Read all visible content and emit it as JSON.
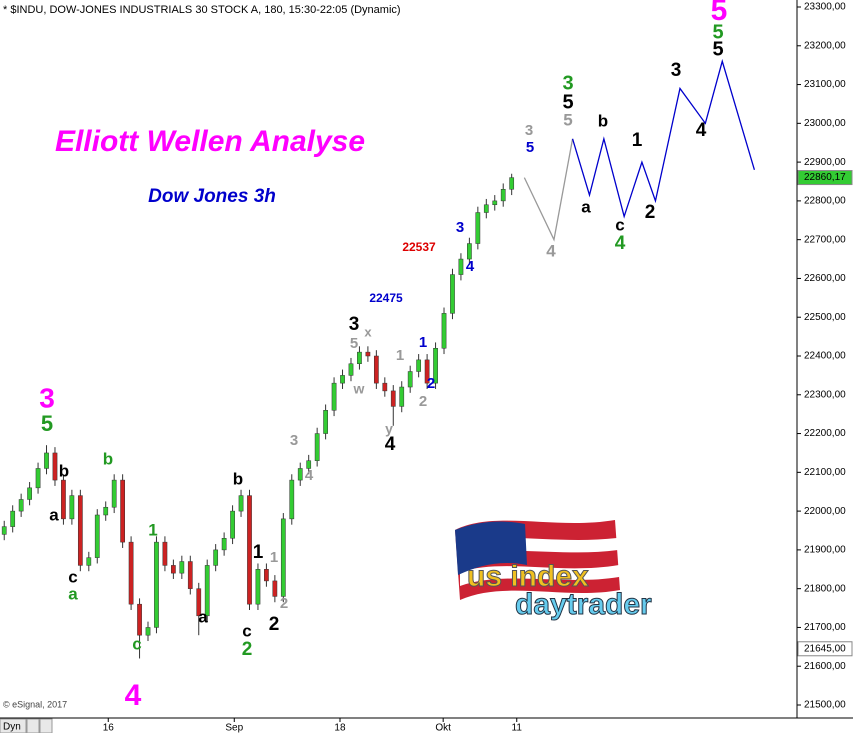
{
  "chart_data": {
    "type": "candlestick",
    "header": "* $INDU, DOW-JONES INDUSTRIALS 30 STOCK A, 180, 15:30-22:05 (Dynamic)",
    "title": "Elliott Wellen Analyse",
    "subtitle": "Dow Jones 3h",
    "source": "© eSignal, 2017",
    "corner_label": "Dyn",
    "logo": [
      "us index",
      "daytrader"
    ],
    "up_color": "#33cc33",
    "down_color": "#cc2222",
    "x": [
      0,
      1,
      2,
      3,
      4,
      5,
      6,
      7,
      8,
      9,
      10,
      11,
      12,
      13,
      14,
      15,
      16,
      17,
      18,
      19,
      20,
      21,
      22,
      23,
      24,
      25,
      26,
      27,
      28,
      29,
      30,
      31,
      32,
      33,
      34,
      35,
      36,
      37,
      38,
      39,
      40,
      41,
      42,
      43,
      44,
      45,
      46,
      47,
      48,
      49,
      50,
      51,
      52,
      53,
      54,
      55,
      56,
      57,
      58,
      59,
      60
    ],
    "open": [
      21940,
      21960,
      22000,
      22030,
      22060,
      22110,
      22150,
      22080,
      21980,
      22040,
      21860,
      21880,
      21990,
      22010,
      22080,
      21920,
      21760,
      21680,
      21700,
      21920,
      21860,
      21840,
      21870,
      21800,
      21730,
      21860,
      21900,
      21930,
      22000,
      22040,
      21760,
      21850,
      21820,
      21780,
      21980,
      22080,
      22110,
      22130,
      22200,
      22260,
      22330,
      22350,
      22380,
      22410,
      22400,
      22330,
      22310,
      22270,
      22320,
      22360,
      22390,
      22330,
      22420,
      22510,
      22610,
      22650,
      22690,
      22770,
      22790,
      22800,
      22830
    ],
    "high": [
      21975,
      22015,
      22045,
      22075,
      22125,
      22170,
      22165,
      22095,
      22055,
      22055,
      21895,
      22005,
      22025,
      22095,
      22095,
      21935,
      21775,
      21715,
      21935,
      21935,
      21875,
      21885,
      21885,
      21815,
      21875,
      21915,
      21945,
      22015,
      22055,
      22055,
      21865,
      21865,
      21835,
      21995,
      22095,
      22125,
      22145,
      22215,
      22275,
      22345,
      22365,
      22395,
      22425,
      22425,
      22415,
      22345,
      22325,
      22335,
      22375,
      22405,
      22405,
      22435,
      22525,
      22625,
      22665,
      22705,
      22785,
      22805,
      22815,
      22845,
      22870
    ],
    "low": [
      21925,
      21945,
      21985,
      22015,
      22045,
      22095,
      22065,
      21965,
      21965,
      21845,
      21845,
      21865,
      21975,
      21995,
      21905,
      21745,
      21620,
      21665,
      21685,
      21845,
      21825,
      21825,
      21785,
      21680,
      21715,
      21845,
      21885,
      21915,
      21985,
      21745,
      21745,
      21805,
      21765,
      21765,
      21965,
      22065,
      22095,
      22115,
      22185,
      22245,
      22315,
      22335,
      22365,
      22385,
      22315,
      22295,
      22220,
      22255,
      22305,
      22345,
      22315,
      22315,
      22405,
      22495,
      22595,
      22635,
      22675,
      22755,
      22775,
      22785,
      22815
    ],
    "close": [
      21960,
      22000,
      22030,
      22060,
      22110,
      22150,
      22080,
      21980,
      22040,
      21860,
      21880,
      21990,
      22010,
      22080,
      21920,
      21760,
      21680,
      21700,
      21920,
      21860,
      21840,
      21870,
      21800,
      21730,
      21860,
      21900,
      21930,
      22000,
      22040,
      21760,
      21850,
      21820,
      21780,
      21980,
      22080,
      22110,
      22130,
      22200,
      22260,
      22330,
      22350,
      22380,
      22410,
      22400,
      22330,
      22310,
      22270,
      22320,
      22360,
      22390,
      22330,
      22420,
      22510,
      22610,
      22650,
      22690,
      22770,
      22790,
      22800,
      22830,
      22860
    ],
    "projection": [
      {
        "color": "#999999",
        "x": [
          61.5,
          65,
          67.2
        ],
        "values": [
          22860,
          22700,
          22960
        ]
      },
      {
        "color": "#0000cc",
        "x": [
          67.2,
          69.2,
          70.9,
          73.3,
          75.4,
          77,
          79.9,
          82.9,
          84.9,
          88.7
        ],
        "values": [
          22960,
          22815,
          22960,
          22760,
          22900,
          22800,
          23090,
          23000,
          23160,
          22880
        ]
      }
    ],
    "xlim": [
      -0.5,
      93.5
    ],
    "xticks": [
      {
        "value": 12.3,
        "label": "16"
      },
      {
        "value": 27.2,
        "label": "Sep"
      },
      {
        "value": 39.7,
        "label": "18"
      },
      {
        "value": 51.9,
        "label": "Okt"
      },
      {
        "value": 60.6,
        "label": "11"
      }
    ],
    "ylim": [
      21500,
      23300
    ],
    "yticks": [
      {
        "value": 21500,
        "label": "21500,00"
      },
      {
        "value": 21600,
        "label": "21600,00"
      },
      {
        "value": 21700,
        "label": "21700,00"
      },
      {
        "value": 21800,
        "label": "21800,00"
      },
      {
        "value": 21900,
        "label": "21900,00"
      },
      {
        "value": 22000,
        "label": "22000,00"
      },
      {
        "value": 22100,
        "label": "22100,00"
      },
      {
        "value": 22200,
        "label": "22200,00"
      },
      {
        "value": 22300,
        "label": "22300,00"
      },
      {
        "value": 22400,
        "label": "22400,00"
      },
      {
        "value": 22500,
        "label": "22500,00"
      },
      {
        "value": 22600,
        "label": "22600,00"
      },
      {
        "value": 22700,
        "label": "22700,00"
      },
      {
        "value": 22800,
        "label": "22800,00"
      },
      {
        "value": 22900,
        "label": "22900,00"
      },
      {
        "value": 23000,
        "label": "23000,00"
      },
      {
        "value": 23100,
        "label": "23100,00"
      },
      {
        "value": 23200,
        "label": "23200,00"
      },
      {
        "value": 23300,
        "label": "23300,00"
      }
    ],
    "price_labels": [
      {
        "value": 22860.17,
        "label": "22860,17",
        "color": "#33cc33"
      },
      {
        "value": 21645,
        "label": "21645,00",
        "color": "#ffffff"
      }
    ],
    "annotations": [
      {
        "text": "3",
        "color": "#ff00ff"
      },
      {
        "text": "5",
        "color": "#229922"
      },
      {
        "text": "b",
        "color": "#000000"
      },
      {
        "text": "a",
        "color": "#000000"
      },
      {
        "text": "c",
        "color": "#000000"
      },
      {
        "text": "a",
        "color": "#229922"
      },
      {
        "text": "b",
        "color": "#229922"
      },
      {
        "text": "c",
        "color": "#229922"
      },
      {
        "text": "4",
        "color": "#ff00ff"
      },
      {
        "text": "1",
        "color": "#229922"
      },
      {
        "text": "a",
        "color": "#000000"
      },
      {
        "text": "b",
        "color": "#000000"
      },
      {
        "text": "1",
        "color": "#000000"
      },
      {
        "text": "1",
        "color": "#999999"
      },
      {
        "text": "c",
        "color": "#000000"
      },
      {
        "text": "2",
        "color": "#229922"
      },
      {
        "text": "2",
        "color": "#999999"
      },
      {
        "text": "2",
        "color": "#000000"
      },
      {
        "text": "3",
        "color": "#999999"
      },
      {
        "text": "4",
        "color": "#999999"
      },
      {
        "text": "3",
        "color": "#000000"
      },
      {
        "text": "x",
        "color": "#999999"
      },
      {
        "text": "5",
        "color": "#999999"
      },
      {
        "text": "w",
        "color": "#999999"
      },
      {
        "text": "1",
        "color": "#999999"
      },
      {
        "text": "y",
        "color": "#999999"
      },
      {
        "text": "4",
        "color": "#000000"
      },
      {
        "text": "1",
        "color": "#0000cc"
      },
      {
        "text": "2",
        "color": "#0000cc"
      },
      {
        "text": "2",
        "color": "#999999"
      },
      {
        "text": "22475",
        "color": "#0000cc"
      },
      {
        "text": "22537",
        "color": "#dd0000"
      },
      {
        "text": "3",
        "color": "#0000cc"
      },
      {
        "text": "4",
        "color": "#0000cc"
      },
      {
        "text": "3",
        "color": "#999999"
      },
      {
        "text": "5",
        "color": "#0000cc"
      },
      {
        "text": "4",
        "color": "#999999"
      },
      {
        "text": "3",
        "color": "#229922"
      },
      {
        "text": "5",
        "color": "#000000"
      },
      {
        "text": "5",
        "color": "#999999"
      },
      {
        "text": "b",
        "color": "#000000"
      },
      {
        "text": "a",
        "color": "#000000"
      },
      {
        "text": "1",
        "color": "#000000"
      },
      {
        "text": "c",
        "color": "#000000"
      },
      {
        "text": "4",
        "color": "#229922"
      },
      {
        "text": "2",
        "color": "#000000"
      },
      {
        "text": "3",
        "color": "#000000"
      },
      {
        "text": "4",
        "color": "#000000"
      },
      {
        "text": "5",
        "color": "#ff00ff"
      },
      {
        "text": "5",
        "color": "#229922"
      },
      {
        "text": "5",
        "color": "#000000"
      }
    ]
  }
}
